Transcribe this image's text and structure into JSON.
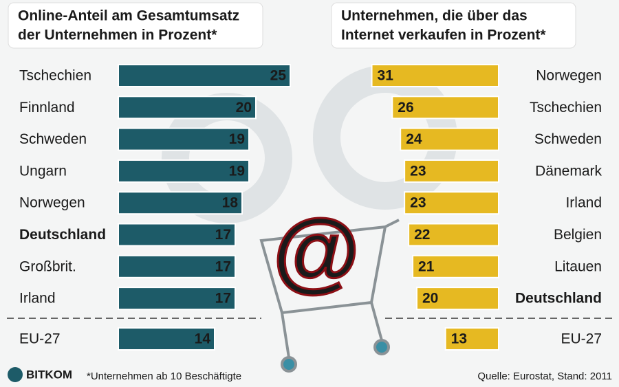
{
  "chart_data": [
    {
      "type": "bar",
      "title": [
        "Online-Anteil am Gesamtumsatz",
        "der Unternehmen in Prozent*"
      ],
      "categories": [
        "Tschechien",
        "Finnland",
        "Schweden",
        "Ungarn",
        "Norwegen",
        "Deutschland",
        "Großbrit.",
        "Irland",
        "EU-27"
      ],
      "values": [
        25,
        20,
        19,
        19,
        18,
        17,
        17,
        17,
        14
      ],
      "color": "#1d5b68",
      "highlight": 5
    },
    {
      "type": "bar",
      "title": [
        "Unternehmen, die über das",
        "Internet verkaufen in Prozent*"
      ],
      "categories": [
        "Norwegen",
        "Tschechien",
        "Schweden",
        "Dänemark",
        "Irland",
        "Belgien",
        "Litauen",
        "Deutschland",
        "EU-27"
      ],
      "values": [
        31,
        26,
        24,
        23,
        23,
        22,
        21,
        20,
        13
      ],
      "color": "#e6b922",
      "highlight": 7
    }
  ],
  "brand": "BITKOM",
  "footnote": "*Unternehmen ab 10 Beschäftigte",
  "source": "Quelle: Eurostat, Stand: 2011"
}
